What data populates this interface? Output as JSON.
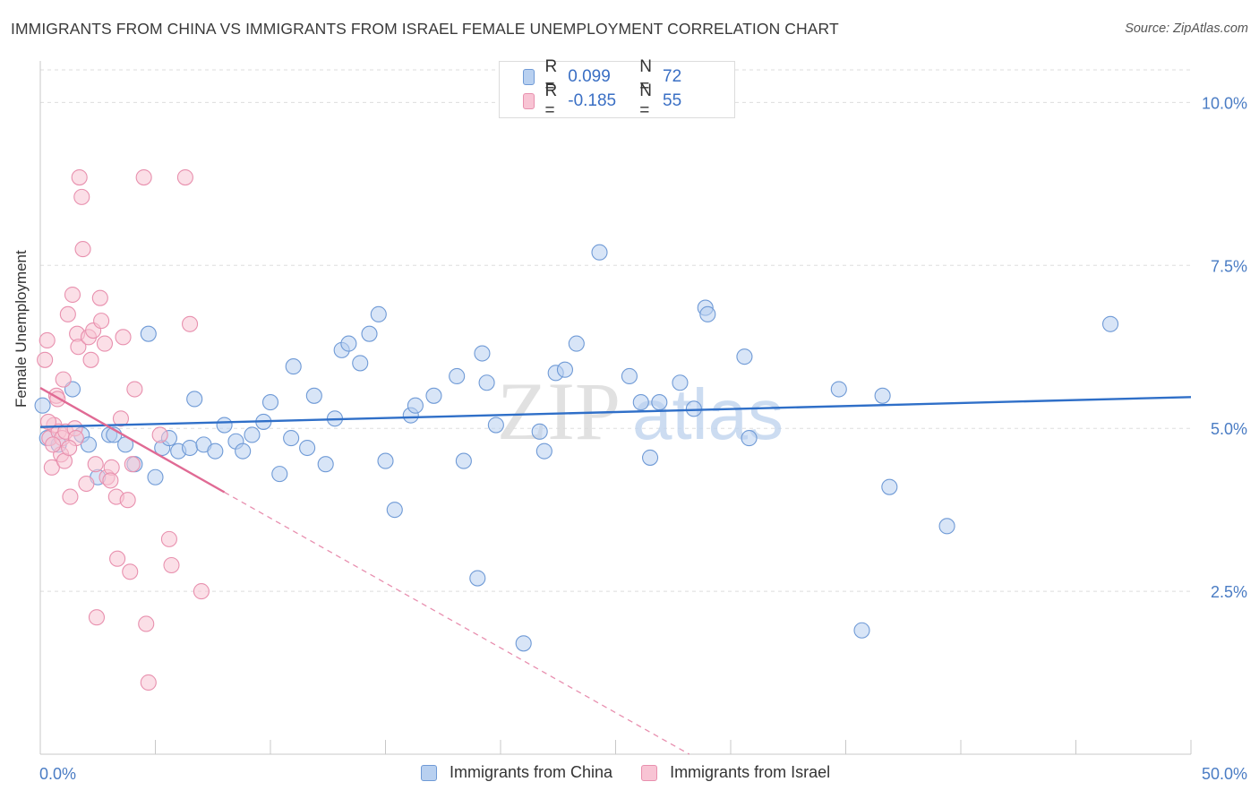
{
  "title": "IMMIGRANTS FROM CHINA VS IMMIGRANTS FROM ISRAEL FEMALE UNEMPLOYMENT CORRELATION CHART",
  "source": "Source: ZipAtlas.com",
  "watermark": {
    "zip": "ZIP",
    "atlas": "atlas"
  },
  "legend": {
    "r_label": "R =",
    "n_label": "N =",
    "rows": [
      {
        "r": "0.099",
        "n": "72",
        "fill": "#b8d0f0",
        "stroke": "#6f9ad6"
      },
      {
        "r": "-0.185",
        "n": "55",
        "fill": "#f8c4d4",
        "stroke": "#e890ae"
      }
    ]
  },
  "chart_data": {
    "type": "scatter",
    "title": "IMMIGRANTS FROM CHINA VS IMMIGRANTS FROM ISRAEL FEMALE UNEMPLOYMENT CORRELATION CHART",
    "xlabel": "",
    "ylabel": "Female Unemployment",
    "xlim": [
      0,
      50
    ],
    "ylim": [
      0,
      10.5
    ],
    "x_tick_labels": [
      "0.0%",
      "50.0%"
    ],
    "y_ticks": [
      2.5,
      5.0,
      7.5,
      10.0
    ],
    "y_tick_labels": [
      "2.5%",
      "5.0%",
      "7.5%",
      "10.0%"
    ],
    "grid": true,
    "legend_position": "top-center",
    "series": [
      {
        "name": "Immigrants from China",
        "color": "#6f9ad6",
        "fill": "#b8d0f0",
        "trend": {
          "x0": 0,
          "y0": 5.02,
          "x1": 50,
          "y1": 5.48,
          "color": "#2f6fc8"
        },
        "points": [
          [
            0.1,
            5.35
          ],
          [
            0.3,
            4.85
          ],
          [
            0.8,
            4.75
          ],
          [
            1.4,
            5.6
          ],
          [
            1.8,
            4.9
          ],
          [
            2.1,
            4.75
          ],
          [
            2.5,
            4.25
          ],
          [
            3.0,
            4.9
          ],
          [
            3.2,
            4.9
          ],
          [
            3.7,
            4.75
          ],
          [
            4.1,
            4.45
          ],
          [
            4.7,
            6.45
          ],
          [
            5.0,
            4.25
          ],
          [
            5.3,
            4.7
          ],
          [
            5.6,
            4.85
          ],
          [
            6.0,
            4.65
          ],
          [
            6.5,
            4.7
          ],
          [
            6.7,
            5.45
          ],
          [
            7.1,
            4.75
          ],
          [
            7.6,
            4.65
          ],
          [
            8.0,
            5.05
          ],
          [
            8.5,
            4.8
          ],
          [
            8.8,
            4.65
          ],
          [
            9.2,
            4.9
          ],
          [
            9.7,
            5.1
          ],
          [
            10.0,
            5.4
          ],
          [
            10.4,
            4.3
          ],
          [
            10.9,
            4.85
          ],
          [
            11.0,
            5.95
          ],
          [
            11.6,
            4.7
          ],
          [
            11.9,
            5.5
          ],
          [
            12.4,
            4.45
          ],
          [
            12.8,
            5.15
          ],
          [
            13.1,
            6.2
          ],
          [
            13.4,
            6.3
          ],
          [
            13.9,
            6.0
          ],
          [
            14.3,
            6.45
          ],
          [
            14.7,
            6.75
          ],
          [
            15.0,
            4.5
          ],
          [
            15.4,
            3.75
          ],
          [
            16.1,
            5.2
          ],
          [
            16.3,
            5.35
          ],
          [
            17.1,
            5.5
          ],
          [
            18.1,
            5.8
          ],
          [
            18.4,
            4.5
          ],
          [
            19.0,
            2.7
          ],
          [
            19.2,
            6.15
          ],
          [
            19.4,
            5.7
          ],
          [
            19.8,
            5.05
          ],
          [
            21.0,
            1.7
          ],
          [
            21.7,
            4.95
          ],
          [
            21.9,
            4.65
          ],
          [
            22.4,
            5.85
          ],
          [
            22.8,
            5.9
          ],
          [
            23.3,
            6.3
          ],
          [
            24.3,
            7.7
          ],
          [
            25.6,
            5.8
          ],
          [
            26.1,
            5.4
          ],
          [
            26.5,
            4.55
          ],
          [
            26.9,
            5.4
          ],
          [
            27.8,
            5.7
          ],
          [
            28.4,
            5.3
          ],
          [
            28.9,
            6.85
          ],
          [
            29.0,
            6.75
          ],
          [
            30.6,
            6.1
          ],
          [
            30.8,
            4.85
          ],
          [
            34.7,
            5.6
          ],
          [
            35.7,
            1.9
          ],
          [
            36.6,
            5.5
          ],
          [
            36.9,
            4.1
          ],
          [
            39.4,
            3.5
          ],
          [
            46.5,
            6.6
          ]
        ]
      },
      {
        "name": "Immigrants from Israel",
        "color": "#e890ae",
        "fill": "#f8c4d4",
        "trend": {
          "x0": 0,
          "y0": 5.62,
          "x1": 8.0,
          "y1": 4.02,
          "dash_to_x": 28.2,
          "dash_to_y": 0.0,
          "color": "#e06a94"
        },
        "points": [
          [
            0.2,
            6.05
          ],
          [
            0.3,
            6.35
          ],
          [
            0.4,
            4.85
          ],
          [
            0.5,
            4.4
          ],
          [
            0.6,
            5.05
          ],
          [
            0.7,
            5.5
          ],
          [
            0.8,
            4.95
          ],
          [
            0.9,
            4.6
          ],
          [
            0.95,
            4.85
          ],
          [
            1.0,
            5.75
          ],
          [
            1.05,
            4.5
          ],
          [
            1.1,
            4.95
          ],
          [
            1.2,
            6.75
          ],
          [
            1.3,
            3.95
          ],
          [
            1.4,
            7.05
          ],
          [
            1.5,
            5.0
          ],
          [
            1.55,
            4.85
          ],
          [
            1.6,
            6.45
          ],
          [
            1.65,
            6.25
          ],
          [
            1.7,
            8.85
          ],
          [
            1.8,
            8.55
          ],
          [
            1.85,
            7.75
          ],
          [
            2.1,
            6.4
          ],
          [
            2.2,
            6.05
          ],
          [
            2.3,
            6.5
          ],
          [
            2.4,
            4.45
          ],
          [
            2.45,
            2.1
          ],
          [
            2.6,
            7.0
          ],
          [
            2.65,
            6.65
          ],
          [
            2.8,
            6.3
          ],
          [
            2.9,
            4.25
          ],
          [
            3.1,
            4.4
          ],
          [
            3.3,
            3.95
          ],
          [
            3.35,
            3.0
          ],
          [
            3.5,
            5.15
          ],
          [
            3.6,
            6.4
          ],
          [
            3.8,
            3.9
          ],
          [
            3.9,
            2.8
          ],
          [
            4.0,
            4.45
          ],
          [
            4.1,
            5.6
          ],
          [
            4.5,
            8.85
          ],
          [
            4.6,
            2.0
          ],
          [
            4.7,
            1.1
          ],
          [
            5.2,
            4.9
          ],
          [
            5.6,
            3.3
          ],
          [
            5.7,
            2.9
          ],
          [
            6.3,
            8.85
          ],
          [
            6.5,
            6.6
          ],
          [
            7.0,
            2.5
          ],
          [
            0.35,
            5.1
          ],
          [
            0.55,
            4.75
          ],
          [
            0.75,
            5.45
          ],
          [
            1.25,
            4.7
          ],
          [
            2.0,
            4.15
          ],
          [
            3.05,
            4.2
          ]
        ]
      }
    ]
  },
  "bottom_legend": [
    {
      "label": "Immigrants from China",
      "fill": "#b8d0f0",
      "stroke": "#6f9ad6"
    },
    {
      "label": "Immigrants from Israel",
      "fill": "#f8c4d4",
      "stroke": "#e890ae"
    }
  ]
}
